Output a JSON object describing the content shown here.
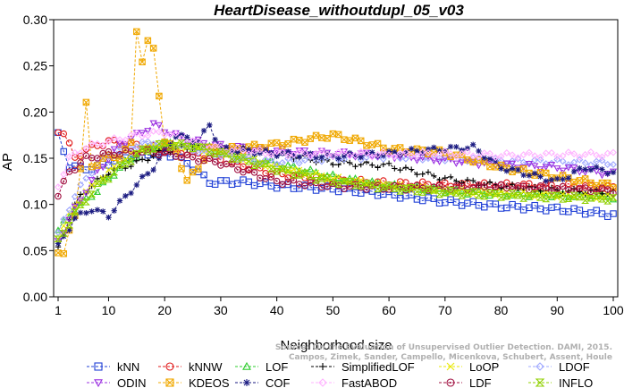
{
  "chart_data": {
    "type": "line",
    "title": "HeartDisease_withoutdupl_05_v03",
    "xlabel": "Neighborhood size",
    "ylabel": "AP",
    "xlim": [
      1,
      100
    ],
    "ylim": [
      0,
      0.3
    ],
    "xticks": [
      1,
      10,
      20,
      30,
      40,
      50,
      60,
      70,
      80,
      90,
      100
    ],
    "yticks": [
      "0.00",
      "0.05",
      "0.10",
      "0.15",
      "0.20",
      "0.25",
      "0.30"
    ],
    "grid": false,
    "legend_position": "bottom",
    "watermark": [
      "Source: On the Evaluation of Unsupervised Outlier Detection. DAMI, 2015.",
      "Campos, Zimek, Sander, Campello, Micenkova, Schubert, Assent, Houle"
    ],
    "series": [
      {
        "name": "kNN",
        "color": "#1f3fd6",
        "marker": "square",
        "anchors": [
          [
            1,
            0.175
          ],
          [
            2,
            0.158
          ],
          [
            3,
            0.142
          ],
          [
            5,
            0.139
          ],
          [
            8,
            0.14
          ],
          [
            12,
            0.15
          ],
          [
            18,
            0.156
          ],
          [
            22,
            0.153
          ],
          [
            25,
            0.14
          ],
          [
            28,
            0.124
          ],
          [
            35,
            0.124
          ],
          [
            40,
            0.12
          ],
          [
            50,
            0.117
          ],
          [
            60,
            0.111
          ],
          [
            70,
            0.103
          ],
          [
            80,
            0.098
          ],
          [
            90,
            0.095
          ],
          [
            100,
            0.089
          ]
        ]
      },
      {
        "name": "kNNW",
        "color": "#e01919",
        "marker": "circle",
        "anchors": [
          [
            1,
            0.18
          ],
          [
            2,
            0.178
          ],
          [
            4,
            0.15
          ],
          [
            6,
            0.16
          ],
          [
            10,
            0.168
          ],
          [
            15,
            0.164
          ],
          [
            20,
            0.159
          ],
          [
            25,
            0.155
          ],
          [
            30,
            0.148
          ],
          [
            40,
            0.133
          ],
          [
            50,
            0.126
          ],
          [
            60,
            0.123
          ],
          [
            70,
            0.121
          ],
          [
            80,
            0.121
          ],
          [
            90,
            0.12
          ],
          [
            100,
            0.118
          ]
        ]
      },
      {
        "name": "LOF",
        "color": "#2ecc2e",
        "marker": "triangle",
        "anchors": [
          [
            1,
            0.072
          ],
          [
            4,
            0.095
          ],
          [
            8,
            0.115
          ],
          [
            12,
            0.14
          ],
          [
            16,
            0.158
          ],
          [
            20,
            0.166
          ],
          [
            25,
            0.165
          ],
          [
            30,
            0.158
          ],
          [
            35,
            0.15
          ],
          [
            40,
            0.144
          ],
          [
            50,
            0.13
          ],
          [
            60,
            0.12
          ],
          [
            70,
            0.115
          ],
          [
            80,
            0.111
          ],
          [
            90,
            0.11
          ],
          [
            100,
            0.108
          ]
        ]
      },
      {
        "name": "SimplifiedLOF",
        "color": "#000000",
        "marker": "plus",
        "anchors": [
          [
            1,
            0.052
          ],
          [
            3,
            0.085
          ],
          [
            5,
            0.11
          ],
          [
            10,
            0.135
          ],
          [
            15,
            0.145
          ],
          [
            20,
            0.158
          ],
          [
            25,
            0.162
          ],
          [
            30,
            0.161
          ],
          [
            35,
            0.16
          ],
          [
            40,
            0.155
          ],
          [
            45,
            0.15
          ],
          [
            50,
            0.145
          ],
          [
            60,
            0.142
          ],
          [
            70,
            0.128
          ],
          [
            80,
            0.12
          ],
          [
            90,
            0.115
          ],
          [
            100,
            0.113
          ]
        ]
      },
      {
        "name": "LoOP",
        "color": "#e8e800",
        "marker": "x",
        "anchors": [
          [
            1,
            0.065
          ],
          [
            4,
            0.1
          ],
          [
            8,
            0.125
          ],
          [
            12,
            0.145
          ],
          [
            16,
            0.16
          ],
          [
            20,
            0.165
          ],
          [
            25,
            0.162
          ],
          [
            30,
            0.157
          ],
          [
            40,
            0.14
          ],
          [
            50,
            0.128
          ],
          [
            60,
            0.12
          ],
          [
            70,
            0.115
          ],
          [
            80,
            0.112
          ],
          [
            90,
            0.11
          ],
          [
            100,
            0.108
          ]
        ]
      },
      {
        "name": "LDOF",
        "color": "#9fa8ff",
        "marker": "diamond",
        "anchors": [
          [
            1,
            0.068
          ],
          [
            4,
            0.11
          ],
          [
            8,
            0.145
          ],
          [
            12,
            0.16
          ],
          [
            18,
            0.168
          ],
          [
            22,
            0.164
          ],
          [
            28,
            0.155
          ],
          [
            35,
            0.148
          ],
          [
            40,
            0.146
          ],
          [
            50,
            0.15
          ],
          [
            60,
            0.152
          ],
          [
            70,
            0.15
          ],
          [
            80,
            0.147
          ],
          [
            90,
            0.146
          ],
          [
            100,
            0.145
          ]
        ]
      },
      {
        "name": "ODIN",
        "color": "#9b30e0",
        "marker": "triangle-down",
        "anchors": [
          [
            1,
            0.06
          ],
          [
            4,
            0.095
          ],
          [
            8,
            0.135
          ],
          [
            12,
            0.165
          ],
          [
            16,
            0.178
          ],
          [
            18,
            0.187
          ],
          [
            20,
            0.18
          ],
          [
            24,
            0.17
          ],
          [
            30,
            0.163
          ],
          [
            40,
            0.158
          ],
          [
            50,
            0.155
          ],
          [
            60,
            0.153
          ],
          [
            70,
            0.148
          ],
          [
            80,
            0.143
          ],
          [
            90,
            0.14
          ],
          [
            100,
            0.133
          ]
        ]
      },
      {
        "name": "KDEOS",
        "color": "#f0a800",
        "marker": "boxx",
        "anchors": [
          [
            1,
            0.05
          ],
          [
            2,
            0.045
          ],
          [
            3,
            0.07
          ],
          [
            4,
            0.09
          ],
          [
            5,
            0.14
          ],
          [
            6,
            0.208
          ],
          [
            7,
            0.14
          ],
          [
            9,
            0.15
          ],
          [
            12,
            0.152
          ],
          [
            14,
            0.165
          ],
          [
            15,
            0.289
          ],
          [
            16,
            0.256
          ],
          [
            17,
            0.275
          ],
          [
            18,
            0.268
          ],
          [
            19,
            0.22
          ],
          [
            20,
            0.168
          ],
          [
            22,
            0.158
          ],
          [
            24,
            0.125
          ],
          [
            26,
            0.14
          ],
          [
            28,
            0.16
          ],
          [
            32,
            0.16
          ],
          [
            40,
            0.165
          ],
          [
            50,
            0.175
          ],
          [
            55,
            0.168
          ],
          [
            60,
            0.16
          ],
          [
            70,
            0.156
          ],
          [
            80,
            0.14
          ],
          [
            90,
            0.13
          ],
          [
            100,
            0.12
          ]
        ]
      },
      {
        "name": "COF",
        "color": "#1a1a80",
        "marker": "star",
        "anchors": [
          [
            1,
            0.055
          ],
          [
            4,
            0.085
          ],
          [
            7,
            0.095
          ],
          [
            10,
            0.088
          ],
          [
            14,
            0.115
          ],
          [
            18,
            0.14
          ],
          [
            22,
            0.175
          ],
          [
            26,
            0.168
          ],
          [
            28,
            0.186
          ],
          [
            30,
            0.16
          ],
          [
            40,
            0.155
          ],
          [
            50,
            0.152
          ],
          [
            60,
            0.155
          ],
          [
            65,
            0.158
          ],
          [
            70,
            0.16
          ],
          [
            75,
            0.162
          ],
          [
            80,
            0.14
          ],
          [
            90,
            0.125
          ],
          [
            95,
            0.14
          ],
          [
            100,
            0.135
          ]
        ]
      },
      {
        "name": "FastABOD",
        "color": "#ffb3ff",
        "marker": "diamond",
        "anchors": [
          [
            1,
            0.12
          ],
          [
            3,
            0.15
          ],
          [
            6,
            0.162
          ],
          [
            10,
            0.168
          ],
          [
            15,
            0.175
          ],
          [
            20,
            0.178
          ],
          [
            25,
            0.168
          ],
          [
            30,
            0.16
          ],
          [
            40,
            0.155
          ],
          [
            50,
            0.155
          ],
          [
            60,
            0.154
          ],
          [
            70,
            0.155
          ],
          [
            80,
            0.153
          ],
          [
            90,
            0.154
          ],
          [
            100,
            0.154
          ]
        ]
      },
      {
        "name": "LDF",
        "color": "#a01040",
        "marker": "circle-dot",
        "anchors": [
          [
            1,
            0.11
          ],
          [
            3,
            0.135
          ],
          [
            6,
            0.15
          ],
          [
            10,
            0.155
          ],
          [
            15,
            0.157
          ],
          [
            20,
            0.156
          ],
          [
            25,
            0.15
          ],
          [
            30,
            0.145
          ],
          [
            40,
            0.125
          ],
          [
            50,
            0.12
          ],
          [
            60,
            0.118
          ],
          [
            70,
            0.118
          ],
          [
            80,
            0.119
          ],
          [
            90,
            0.117
          ],
          [
            100,
            0.115
          ]
        ]
      },
      {
        "name": "INFLO",
        "color": "#90d000",
        "marker": "hourglass",
        "anchors": [
          [
            1,
            0.06
          ],
          [
            4,
            0.09
          ],
          [
            8,
            0.12
          ],
          [
            12,
            0.14
          ],
          [
            16,
            0.158
          ],
          [
            20,
            0.165
          ],
          [
            25,
            0.163
          ],
          [
            30,
            0.155
          ],
          [
            40,
            0.138
          ],
          [
            50,
            0.125
          ],
          [
            60,
            0.118
          ],
          [
            70,
            0.113
          ],
          [
            80,
            0.11
          ],
          [
            90,
            0.108
          ],
          [
            100,
            0.106
          ]
        ]
      }
    ]
  }
}
